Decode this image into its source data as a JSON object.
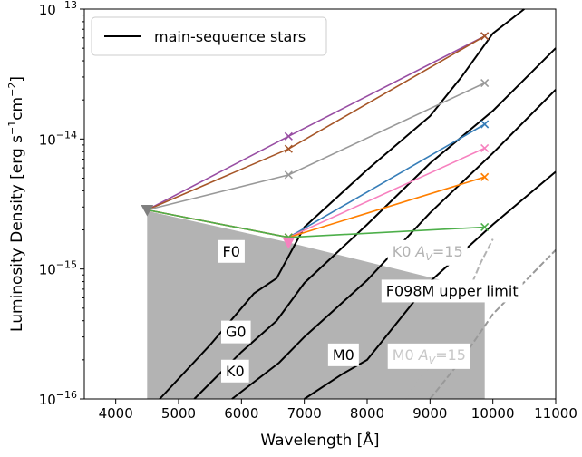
{
  "chart_data": {
    "type": "line",
    "xlabel": "Wavelength [Å]",
    "ylabel_main": "Luminosity Density [erg s",
    "ylabel_exp1": "−1",
    "ylabel_mid": "cm",
    "ylabel_exp2": "−2",
    "ylabel_end": "]",
    "xlim": [
      3500,
      11000
    ],
    "ylim": [
      1e-16,
      1e-13
    ],
    "yscale": "log",
    "xticks": [
      4000,
      5000,
      6000,
      7000,
      8000,
      9000,
      10000,
      11000
    ],
    "xtick_labels": [
      "4000",
      "5000",
      "6000",
      "7000",
      "8000",
      "9000",
      "10000",
      "11000"
    ],
    "yticks": [
      1e-16,
      1e-15,
      1e-14,
      1e-13
    ],
    "ytick_labels": [
      {
        "base": "10",
        "exp": "−16"
      },
      {
        "base": "10",
        "exp": "−15"
      },
      {
        "base": "10",
        "exp": "−14"
      },
      {
        "base": "10",
        "exp": "−13"
      }
    ],
    "legend": {
      "placement": "top-left",
      "entries": [
        "main-sequence stars"
      ]
    },
    "upper_limit_region": {
      "color": "#b3b3b3",
      "points": [
        [
          4500,
          2.8e-15
        ],
        [
          6750,
          1.6e-15
        ],
        [
          9870,
          6.8e-16
        ],
        [
          9870,
          1e-16
        ],
        [
          4500,
          1e-16
        ]
      ]
    },
    "sed_series": [
      {
        "color": "#984ea3",
        "values": [
          [
            4500,
            2.85e-15
          ],
          [
            6750,
            1.05e-14
          ],
          [
            9870,
            6.2e-14
          ]
        ]
      },
      {
        "color": "#a65628",
        "values": [
          [
            4500,
            2.85e-15
          ],
          [
            6750,
            8.4e-15
          ],
          [
            9870,
            6.2e-14
          ]
        ]
      },
      {
        "color": "#999999",
        "values": [
          [
            4500,
            2.85e-15
          ],
          [
            6750,
            5.3e-15
          ],
          [
            9870,
            2.7e-14
          ]
        ]
      },
      {
        "color": "#377eb8",
        "values": [
          [
            4500,
            2.85e-15
          ],
          [
            6750,
            1.75e-15
          ],
          [
            9870,
            1.3e-14
          ]
        ]
      },
      {
        "color": "#f781bf",
        "values": [
          [
            4500,
            2.85e-15
          ],
          [
            6750,
            1.75e-15
          ],
          [
            9870,
            8.5e-15
          ]
        ]
      },
      {
        "color": "#ff7f00",
        "values": [
          [
            4500,
            2.85e-15
          ],
          [
            6750,
            1.75e-15
          ],
          [
            9870,
            5.1e-15
          ]
        ]
      },
      {
        "color": "#4daf4a",
        "values": [
          [
            4500,
            2.85e-15
          ],
          [
            6750,
            1.75e-15
          ],
          [
            9870,
            2.1e-15
          ]
        ]
      }
    ],
    "stellar_models": [
      {
        "name": "F0",
        "color": "#000000",
        "values": [
          [
            4700,
            1e-16
          ],
          [
            5500,
            2.6e-16
          ],
          [
            6200,
            6.5e-16
          ],
          [
            6560,
            8.5e-16
          ],
          [
            7000,
            2.1e-15
          ],
          [
            8000,
            5.8e-15
          ],
          [
            9000,
            1.5e-14
          ],
          [
            9500,
            3e-14
          ],
          [
            10000,
            6.5e-14
          ],
          [
            10500,
            1e-13
          ]
        ]
      },
      {
        "name": "G0",
        "color": "#000000",
        "values": [
          [
            5250,
            1e-16
          ],
          [
            6000,
            2.3e-16
          ],
          [
            6560,
            4e-16
          ],
          [
            7000,
            7.8e-16
          ],
          [
            8000,
            2.2e-15
          ],
          [
            9000,
            6.5e-15
          ],
          [
            10000,
            1.65e-14
          ],
          [
            11000,
            5e-14
          ]
        ]
      },
      {
        "name": "K0",
        "color": "#000000",
        "values": [
          [
            5850,
            1e-16
          ],
          [
            6600,
            1.9e-16
          ],
          [
            7000,
            3e-16
          ],
          [
            8000,
            8.2e-16
          ],
          [
            9000,
            2.7e-15
          ],
          [
            10000,
            7.8e-15
          ],
          [
            11000,
            2.4e-14
          ]
        ]
      },
      {
        "name": "M0",
        "color": "#000000",
        "values": [
          [
            7000,
            1e-16
          ],
          [
            7600,
            1.55e-16
          ],
          [
            8000,
            2e-16
          ],
          [
            9000,
            8e-16
          ],
          [
            10000,
            2.2e-15
          ],
          [
            11000,
            5.6e-15
          ]
        ]
      },
      {
        "name": "K0 A_V=15",
        "color": "#b3b3b3",
        "values": [
          [
            8600,
            1e-16
          ],
          [
            9000,
            1.8e-16
          ],
          [
            9500,
            5e-16
          ],
          [
            9800,
            1.1e-15
          ],
          [
            10000,
            1.7e-15
          ]
        ]
      },
      {
        "name": "M0 A_V=15",
        "color": "#999999",
        "values": [
          [
            9000,
            1e-16
          ],
          [
            9500,
            2e-16
          ],
          [
            10000,
            4.5e-16
          ],
          [
            11000,
            1.4e-15
          ]
        ]
      }
    ],
    "annotations": [
      {
        "text": "F0",
        "x": 5700,
        "y": 1.25e-15,
        "color": "#000000",
        "box": true
      },
      {
        "text": "G0",
        "x": 5750,
        "y": 3e-16,
        "color": "#000000",
        "box": true
      },
      {
        "text": "K0",
        "x": 5750,
        "y": 1.5e-16,
        "color": "#000000",
        "box": true
      },
      {
        "text": "M0",
        "x": 7450,
        "y": 2e-16,
        "color": "#000000",
        "box": true
      },
      {
        "text": "K0",
        "italic_tail": "A",
        "sub": "V",
        "tail": "=15",
        "x": 8400,
        "y": 1.25e-15,
        "color": "#b3b3b3",
        "box": true
      },
      {
        "text": "M0",
        "italic_tail": "A",
        "sub": "V",
        "tail": "=15",
        "x": 8400,
        "y": 2e-16,
        "color": "#c8c8c8",
        "box": true
      },
      {
        "text": "F098M upper limit",
        "x": 8300,
        "y": 6.2e-16,
        "color": "#000000",
        "box": true
      }
    ]
  }
}
